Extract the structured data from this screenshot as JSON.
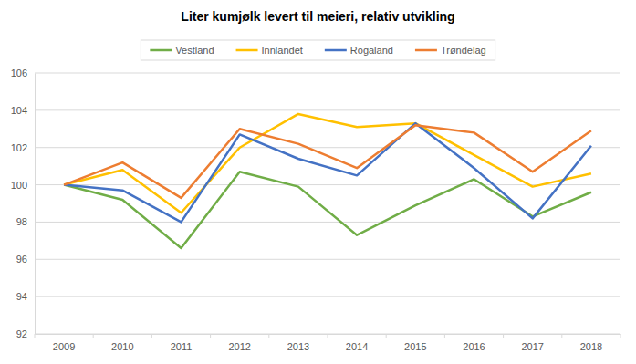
{
  "chart_data": {
    "type": "line",
    "title": "Liter kumjølk levert til meieri, relativ utvikling",
    "categories": [
      "2009",
      "2010",
      "2011",
      "2012",
      "2013",
      "2014",
      "2015",
      "2016",
      "2017",
      "2018"
    ],
    "series": [
      {
        "name": "Vestland",
        "color": "#70ad47",
        "values": [
          100,
          99.2,
          96.6,
          100.7,
          99.9,
          97.3,
          98.9,
          100.3,
          98.3,
          99.6
        ]
      },
      {
        "name": "Innlandet",
        "color": "#ffc000",
        "values": [
          100,
          100.8,
          98.5,
          102.0,
          103.8,
          103.1,
          103.3,
          101.6,
          99.9,
          100.6
        ]
      },
      {
        "name": "Rogaland",
        "color": "#4472c4",
        "values": [
          100,
          99.7,
          98.0,
          102.7,
          101.4,
          100.5,
          103.3,
          100.9,
          98.2,
          102.1
        ]
      },
      {
        "name": "Trøndelag",
        "color": "#ed7d31",
        "values": [
          100,
          101.2,
          99.3,
          103.0,
          102.2,
          100.9,
          103.2,
          102.8,
          100.7,
          102.9
        ]
      }
    ],
    "ylim": [
      92,
      106
    ],
    "yticks": [
      92,
      94,
      96,
      98,
      100,
      102,
      104,
      106
    ],
    "grid": true,
    "legend": "top"
  }
}
